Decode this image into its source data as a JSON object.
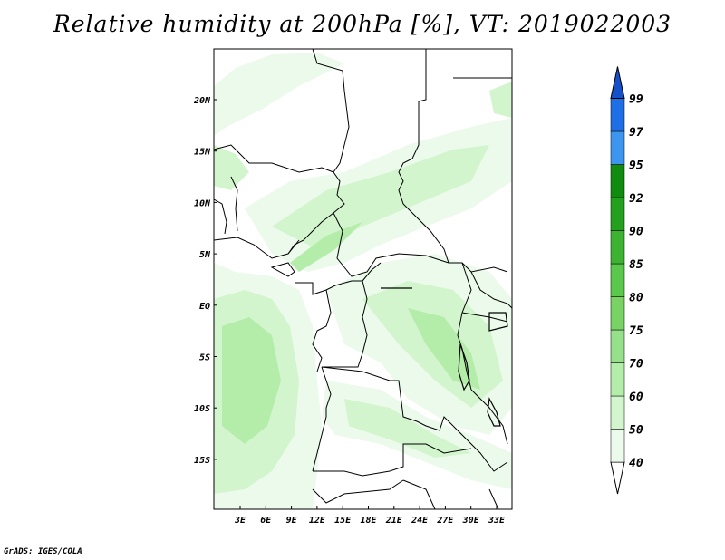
{
  "title": "Relative humidity at 200hPa [%], VT: 2019022003",
  "credit": "GrADS: IGES/COLA",
  "lat_labels": [
    "20N",
    "15N",
    "10N",
    "5N",
    "EQ",
    "5S",
    "10S",
    "15S"
  ],
  "lon_labels": [
    "3E",
    "6E",
    "9E",
    "12E",
    "15E",
    "18E",
    "21E",
    "24E",
    "27E",
    "30E",
    "33E"
  ],
  "colorbar": {
    "levels": [
      "40",
      "50",
      "60",
      "70",
      "75",
      "80",
      "85",
      "90",
      "92",
      "95",
      "97",
      "99"
    ],
    "colors": [
      "#ebfaeb",
      "#d2f5cd",
      "#b4ecaa",
      "#96e08c",
      "#78d264",
      "#5ac84b",
      "#3cb432",
      "#23a01e",
      "#0f8c0f",
      "#3c96f0",
      "#1e6ee6",
      "#1450c8"
    ]
  }
}
